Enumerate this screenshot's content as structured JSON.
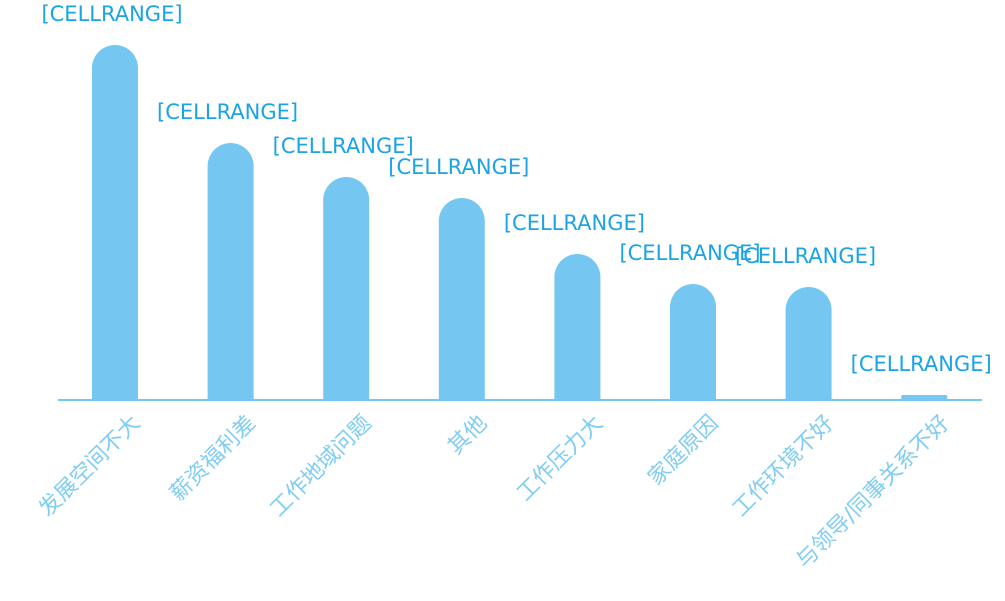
{
  "chart_data": {
    "type": "bar",
    "categories": [
      "发展空间不大",
      "薪资福利差",
      "工作地域问题",
      "其他",
      "工作压力大",
      "家庭原因",
      "工作环境不好",
      "与领导/同事关系不好"
    ],
    "values": [
      355,
      257,
      223,
      202,
      146,
      116,
      113,
      5
    ],
    "value_labels": [
      "[CELLRANGE]",
      "[CELLRANGE]",
      "[CELLRANGE]",
      "[CELLRANGE]",
      "[CELLRANGE]",
      "[CELLRANGE]",
      "[CELLRANGE]",
      "[CELLRANGE]"
    ],
    "color": "#75c7f1",
    "label_color": "#1ba3e3",
    "category_color": "#80cdf3"
  }
}
